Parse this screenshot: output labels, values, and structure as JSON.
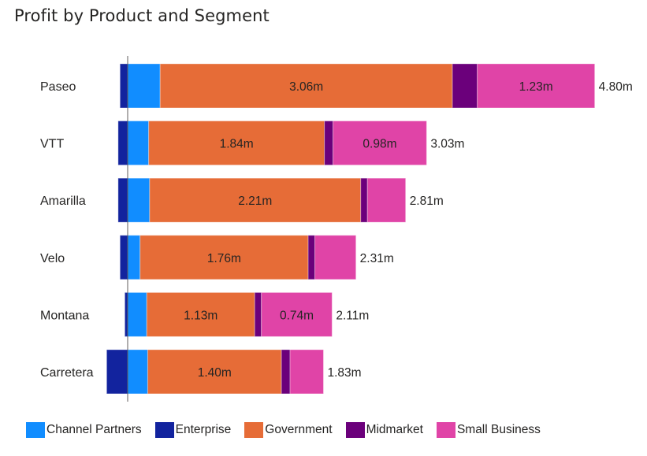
{
  "chart_data": {
    "type": "bar",
    "orientation": "horizontal",
    "stacked": true,
    "title": "Profit by Product and Segment",
    "xlabel": "",
    "ylabel": "",
    "categories": [
      "Paseo",
      "VTT",
      "Amarilla",
      "Velo",
      "Montana",
      "Carretera"
    ],
    "series": [
      {
        "name": "Enterprise",
        "color": "#12239E",
        "values": [
          -0.08,
          -0.1,
          -0.1,
          -0.08,
          -0.03,
          -0.22
        ]
      },
      {
        "name": "Channel Partners",
        "color": "#118DFF",
        "values": [
          0.34,
          0.22,
          0.23,
          0.13,
          0.2,
          0.21
        ]
      },
      {
        "name": "Government",
        "color": "#E66C37",
        "values": [
          3.06,
          1.84,
          2.21,
          1.76,
          1.13,
          1.4
        ]
      },
      {
        "name": "Midmarket",
        "color": "#6B007B",
        "values": [
          0.26,
          0.09,
          0.07,
          0.07,
          0.07,
          0.09
        ]
      },
      {
        "name": "Small Business",
        "color": "#E044A7",
        "values": [
          1.23,
          0.98,
          0.4,
          0.43,
          0.74,
          0.35
        ]
      }
    ],
    "data_labels": [
      {
        "category": "Paseo",
        "series": "Government",
        "text": "3.06m"
      },
      {
        "category": "Paseo",
        "series": "Small Business",
        "text": "1.23m"
      },
      {
        "category": "VTT",
        "series": "Government",
        "text": "1.84m"
      },
      {
        "category": "VTT",
        "series": "Small Business",
        "text": "0.98m"
      },
      {
        "category": "Amarilla",
        "series": "Government",
        "text": "2.21m"
      },
      {
        "category": "Velo",
        "series": "Government",
        "text": "1.76m"
      },
      {
        "category": "Montana",
        "series": "Government",
        "text": "1.13m"
      },
      {
        "category": "Montana",
        "series": "Small Business",
        "text": "0.74m"
      },
      {
        "category": "Carretera",
        "series": "Government",
        "text": "1.40m"
      }
    ],
    "totals": [
      "4.80m",
      "3.03m",
      "2.81m",
      "2.31m",
      "2.11m",
      "1.83m"
    ],
    "unit": "m",
    "xlim": [
      -0.22,
      4.9
    ],
    "grid": false,
    "legend_position": "bottom-left",
    "legend": [
      "Channel Partners",
      "Enterprise",
      "Government",
      "Midmarket",
      "Small Business"
    ]
  }
}
